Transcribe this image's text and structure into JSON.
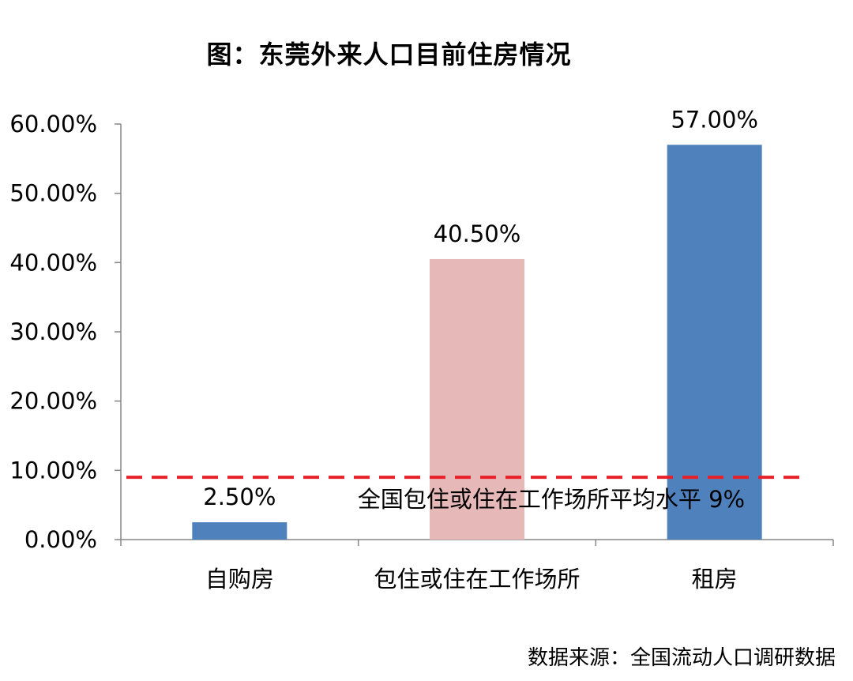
{
  "chart_data": {
    "type": "bar",
    "title": "图：东莞外来人口目前住房情况",
    "categories": [
      "自购房",
      "包住或住在工作场所",
      "租房"
    ],
    "values": [
      2.5,
      40.5,
      57.0
    ],
    "data_labels": [
      "2.50%",
      "40.50%",
      "57.00%"
    ],
    "bar_colors": [
      "#4f81bd",
      "#e6b9b8",
      "#4f81bd"
    ],
    "ylim": [
      0,
      60
    ],
    "yticks": [
      0,
      10,
      20,
      30,
      40,
      50,
      60
    ],
    "ytick_labels": [
      "0.00%",
      "10.00%",
      "20.00%",
      "30.00%",
      "40.00%",
      "50.00%",
      "60.00%"
    ],
    "xlabel": "",
    "ylabel": "",
    "grid": false,
    "reference_line": {
      "value": 9,
      "label": "全国包住或住在工作场所平均水平 9%",
      "color": "#e8202a",
      "style": "dashed"
    }
  },
  "source": "数据来源：全国流动人口调研数据"
}
